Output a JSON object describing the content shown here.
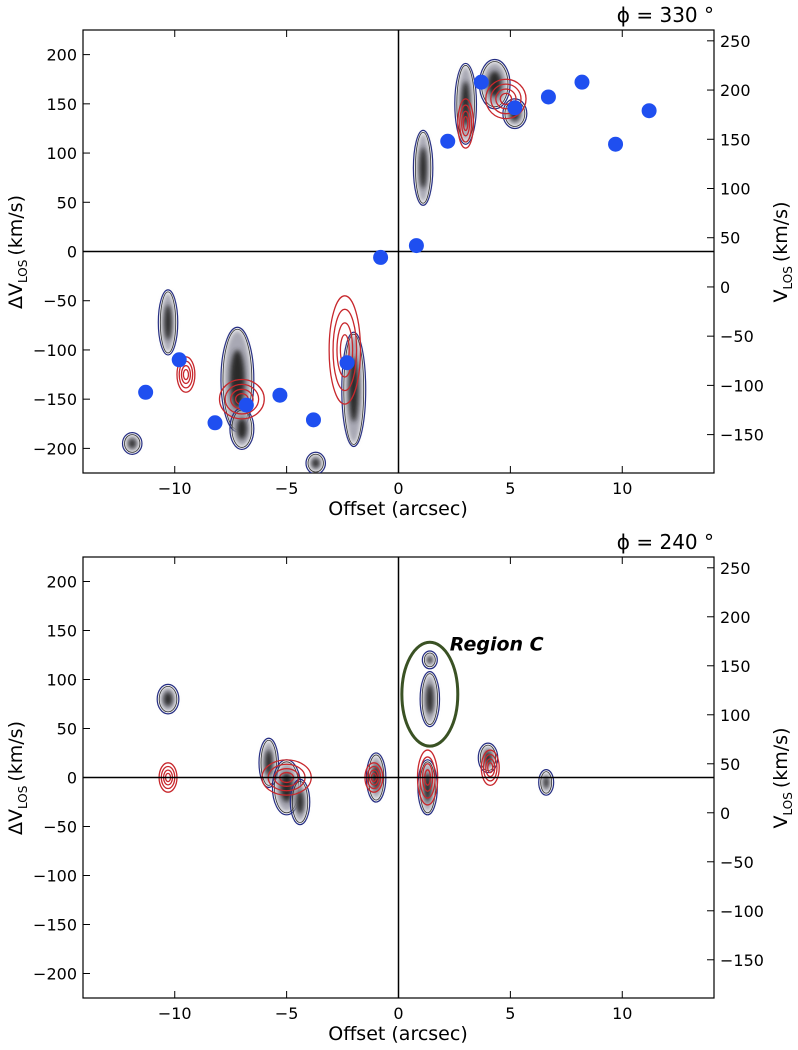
{
  "chart_data": [
    {
      "type": "scatter",
      "title": "ϕ = 330 °",
      "xlabel": "Offset (arcsec)",
      "ylabel": "ΔV",
      "ylabel_sub": "LOS",
      "ylabel_unit": "(km/s)",
      "y2label": "V",
      "y2label_sub": "LOS",
      "y2label_unit": "(km/s)",
      "xlim": [
        -14.1,
        14.1
      ],
      "ylim": [
        -225,
        225
      ],
      "y2lim": [
        -189,
        261
      ],
      "xticks": [
        -10,
        -5,
        0,
        5,
        10
      ],
      "xtick_labels": [
        "−10",
        "−5",
        "0",
        "5",
        "10"
      ],
      "yticks": [
        200,
        150,
        100,
        50,
        0,
        -50,
        -100,
        -150,
        -200
      ],
      "ytick_labels": [
        "200",
        "150",
        "100",
        "50",
        "0",
        "−50",
        "−100",
        "−150",
        "−200"
      ],
      "y2ticks": [
        250,
        200,
        150,
        100,
        50,
        0,
        -50,
        -100,
        -150
      ],
      "y2tick_labels": [
        "250",
        "200",
        "150",
        "100",
        "50",
        "0",
        "−50",
        "−100",
        "−150"
      ],
      "grid": false,
      "points_color": "#1f4ff0",
      "red_color": "#c8282d",
      "blue_color": "#1a237e",
      "points": [
        {
          "x": -11.3,
          "y": -143
        },
        {
          "x": -9.8,
          "y": -110
        },
        {
          "x": -8.2,
          "y": -174
        },
        {
          "x": -6.8,
          "y": -156
        },
        {
          "x": -5.3,
          "y": -146
        },
        {
          "x": -3.8,
          "y": -171
        },
        {
          "x": -2.3,
          "y": -113
        },
        {
          "x": -0.8,
          "y": -6
        },
        {
          "x": 0.8,
          "y": 6
        },
        {
          "x": 2.2,
          "y": 112
        },
        {
          "x": 3.7,
          "y": 172
        },
        {
          "x": 5.2,
          "y": 146
        },
        {
          "x": 6.7,
          "y": 157
        },
        {
          "x": 8.2,
          "y": 172
        },
        {
          "x": 9.7,
          "y": 109
        },
        {
          "x": 11.2,
          "y": 143
        }
      ],
      "emission_features": [
        {
          "x": -10.3,
          "y": -72,
          "sx": 0.3,
          "sy": 30
        },
        {
          "x": -7.2,
          "y": -130,
          "sx": 0.6,
          "sy": 50
        },
        {
          "x": -7.0,
          "y": -180,
          "sx": 0.4,
          "sy": 18
        },
        {
          "x": -2.0,
          "y": -140,
          "sx": 0.4,
          "sy": 55
        },
        {
          "x": -3.7,
          "y": -215,
          "sx": 0.3,
          "sy": 8
        },
        {
          "x": 3.0,
          "y": 150,
          "sx": 0.35,
          "sy": 38
        },
        {
          "x": 4.3,
          "y": 170,
          "sx": 0.55,
          "sy": 22
        },
        {
          "x": 5.2,
          "y": 140,
          "sx": 0.4,
          "sy": 12
        },
        {
          "x": 1.1,
          "y": 85,
          "sx": 0.3,
          "sy": 35
        },
        {
          "x": -11.9,
          "y": -195,
          "sx": 0.3,
          "sy": 8
        }
      ],
      "co_features": [
        {
          "x": -7.0,
          "y": -150,
          "rx": 1.0,
          "ry": 20
        },
        {
          "x": -9.5,
          "y": -125,
          "rx": 0.4,
          "ry": 18
        },
        {
          "x": -2.4,
          "y": -100,
          "rx": 0.7,
          "ry": 55
        },
        {
          "x": 3.0,
          "y": 130,
          "rx": 0.35,
          "ry": 25
        },
        {
          "x": 4.8,
          "y": 155,
          "rx": 0.9,
          "ry": 20
        }
      ]
    },
    {
      "type": "scatter",
      "title": "ϕ = 240 °",
      "xlabel": "Offset (arcsec)",
      "ylabel": "ΔV",
      "ylabel_sub": "LOS",
      "ylabel_unit": "(km/s)",
      "y2label": "V",
      "y2label_sub": "LOS",
      "y2label_unit": "(km/s)",
      "xlim": [
        -14.1,
        14.1
      ],
      "ylim": [
        -225,
        225
      ],
      "y2lim": [
        -189,
        261
      ],
      "xticks": [
        -10,
        -5,
        0,
        5,
        10
      ],
      "xtick_labels": [
        "−10",
        "−5",
        "0",
        "5",
        "10"
      ],
      "yticks": [
        200,
        150,
        100,
        50,
        0,
        -50,
        -100,
        -150,
        -200
      ],
      "ytick_labels": [
        "200",
        "150",
        "100",
        "50",
        "0",
        "−50",
        "−100",
        "−150",
        "−200"
      ],
      "y2ticks": [
        250,
        200,
        150,
        100,
        50,
        0,
        -50,
        -100,
        -150
      ],
      "y2tick_labels": [
        "250",
        "200",
        "150",
        "100",
        "50",
        "0",
        "−50",
        "−100",
        "−150"
      ],
      "grid": false,
      "annotation": {
        "text": "Region C",
        "x": 1.4,
        "y": 85,
        "rx": 1.25,
        "ry": 53,
        "color": "#3a5224"
      },
      "emission_features": [
        {
          "x": -10.3,
          "y": 80,
          "sx": 0.35,
          "sy": 12
        },
        {
          "x": -5.8,
          "y": 15,
          "sx": 0.3,
          "sy": 22
        },
        {
          "x": -5.0,
          "y": -10,
          "sx": 0.5,
          "sy": 25
        },
        {
          "x": -4.4,
          "y": -25,
          "sx": 0.3,
          "sy": 20
        },
        {
          "x": -1.0,
          "y": 0,
          "sx": 0.3,
          "sy": 22
        },
        {
          "x": 1.4,
          "y": 120,
          "sx": 0.2,
          "sy": 6
        },
        {
          "x": 1.4,
          "y": 80,
          "sx": 0.3,
          "sy": 25
        },
        {
          "x": 1.3,
          "y": -10,
          "sx": 0.3,
          "sy": 25
        },
        {
          "x": 4.0,
          "y": 20,
          "sx": 0.3,
          "sy": 12
        },
        {
          "x": 6.6,
          "y": -5,
          "sx": 0.2,
          "sy": 10
        }
      ],
      "co_features": [
        {
          "x": -10.3,
          "y": 0,
          "rx": 0.4,
          "ry": 15
        },
        {
          "x": -5.0,
          "y": 0,
          "rx": 1.1,
          "ry": 18
        },
        {
          "x": -1.1,
          "y": 0,
          "rx": 0.4,
          "ry": 15
        },
        {
          "x": 1.3,
          "y": 0,
          "rx": 0.45,
          "ry": 28
        },
        {
          "x": 4.1,
          "y": 10,
          "rx": 0.4,
          "ry": 18
        }
      ]
    }
  ]
}
